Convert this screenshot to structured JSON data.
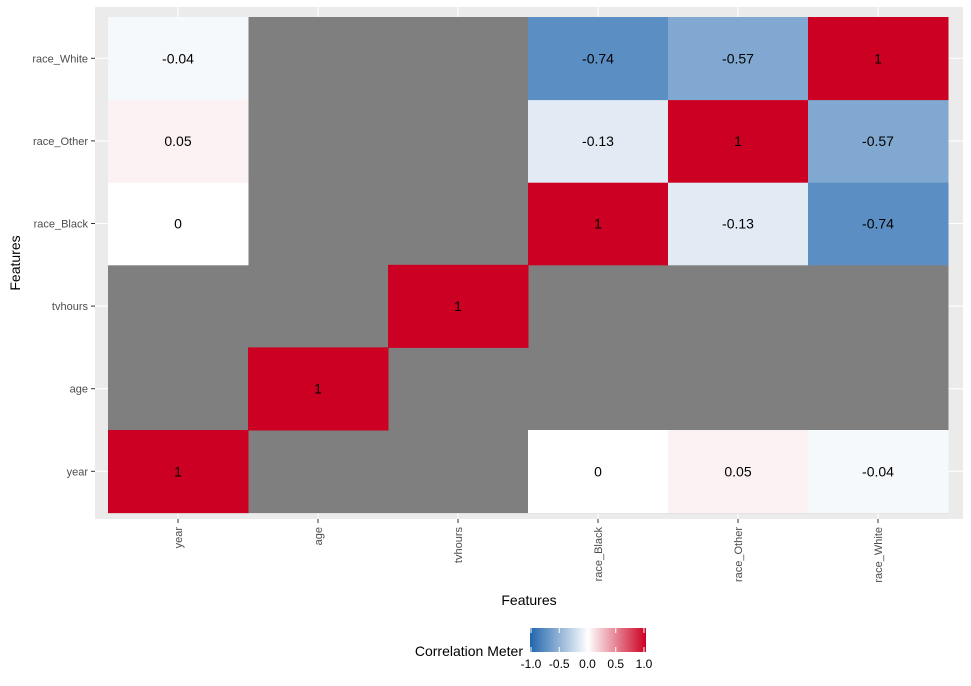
{
  "chart_data": {
    "type": "heatmap",
    "xlabel": "Features",
    "ylabel": "Features",
    "x_categories": [
      "year",
      "age",
      "tvhours",
      "race_Black",
      "race_Other",
      "race_White"
    ],
    "y_categories": [
      "year",
      "age",
      "tvhours",
      "race_Black",
      "race_Other",
      "race_White"
    ],
    "cells": [
      {
        "x": "year",
        "y": "year",
        "value": 1,
        "label": "1"
      },
      {
        "x": "race_Black",
        "y": "year",
        "value": 0,
        "label": "0"
      },
      {
        "x": "race_Other",
        "y": "year",
        "value": 0.05,
        "label": "0.05"
      },
      {
        "x": "race_White",
        "y": "year",
        "value": -0.04,
        "label": "-0.04"
      },
      {
        "x": "age",
        "y": "age",
        "value": 1,
        "label": "1"
      },
      {
        "x": "tvhours",
        "y": "tvhours",
        "value": 1,
        "label": "1"
      },
      {
        "x": "year",
        "y": "race_Black",
        "value": 0,
        "label": "0"
      },
      {
        "x": "race_Black",
        "y": "race_Black",
        "value": 1,
        "label": "1"
      },
      {
        "x": "race_Other",
        "y": "race_Black",
        "value": -0.13,
        "label": "-0.13"
      },
      {
        "x": "race_White",
        "y": "race_Black",
        "value": -0.74,
        "label": "-0.74"
      },
      {
        "x": "year",
        "y": "race_Other",
        "value": 0.05,
        "label": "0.05"
      },
      {
        "x": "race_Black",
        "y": "race_Other",
        "value": -0.13,
        "label": "-0.13"
      },
      {
        "x": "race_Other",
        "y": "race_Other",
        "value": 1,
        "label": "1"
      },
      {
        "x": "race_White",
        "y": "race_Other",
        "value": -0.57,
        "label": "-0.57"
      },
      {
        "x": "year",
        "y": "race_White",
        "value": -0.04,
        "label": "-0.04"
      },
      {
        "x": "race_Black",
        "y": "race_White",
        "value": -0.74,
        "label": "-0.74"
      },
      {
        "x": "race_Other",
        "y": "race_White",
        "value": -0.57,
        "label": "-0.57"
      },
      {
        "x": "race_White",
        "y": "race_White",
        "value": 1,
        "label": "1"
      }
    ],
    "na_color": "#7f7f7f",
    "color_scale": {
      "low": "#2166ac",
      "mid": "#ffffff",
      "high": "#cc0022",
      "limits": [
        -1,
        1
      ]
    },
    "legend": {
      "title": "Correlation Meter",
      "position": "bottom",
      "ticks": [
        "-1.0",
        "-0.5",
        "0.0",
        "0.5",
        "1.0"
      ]
    }
  }
}
